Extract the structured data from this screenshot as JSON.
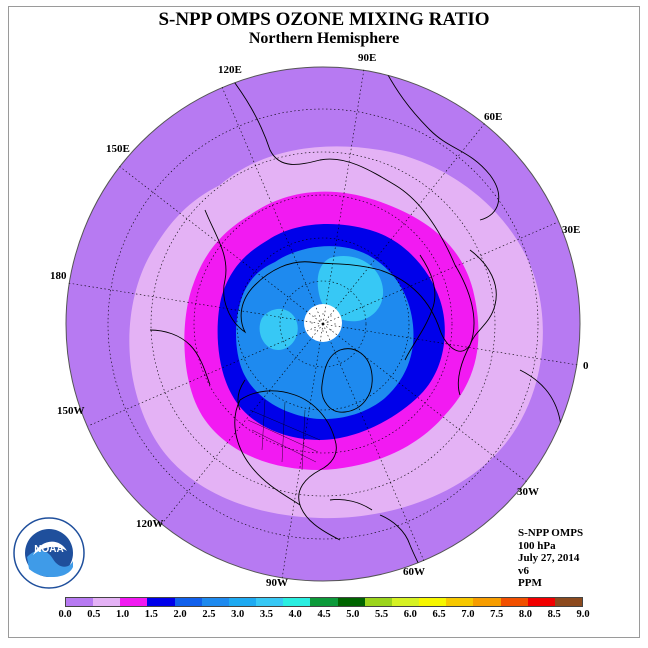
{
  "title": "S-NPP OMPS OZONE MIXING RATIO",
  "subtitle": "Northern Hemisphere",
  "longitude_labels": [
    "0",
    "30E",
    "60E",
    "90E",
    "120E",
    "150E",
    "180",
    "150W",
    "120W",
    "90W",
    "60W",
    "30W"
  ],
  "info": {
    "instrument": "S-NPP OMPS",
    "level": "100 hPa",
    "date": "July 27, 2014",
    "version": "v6",
    "units": "PPM"
  },
  "logo": {
    "name": "NOAA",
    "ring_text": "NATIONAL OCEANIC AND ATMOSPHERIC ADMINISTRATION · U.S. DEPARTMENT OF COMMERCE"
  },
  "colorbar": {
    "colors": [
      "#b77af2",
      "#e4b2f5",
      "#f21af2",
      "#0000ea",
      "#1160ec",
      "#1e8aef",
      "#1eaaf2",
      "#37c8f5",
      "#2aeee0",
      "#0c9a3a",
      "#006400",
      "#9bd41c",
      "#d6f224",
      "#f7f700",
      "#f7c800",
      "#f79d00",
      "#f25000",
      "#f20000",
      "#8c4a1e"
    ],
    "ticks": [
      "0.0",
      "0.5",
      "1.0",
      "1.5",
      "2.0",
      "2.5",
      "3.0",
      "3.5",
      "4.0",
      "4.5",
      "5.0",
      "5.5",
      "6.0",
      "6.5",
      "7.0",
      "7.5",
      "8.0",
      "8.5",
      "9.0"
    ]
  },
  "map_colors": {
    "outer": "#b77af2",
    "light": "#e4b2f5",
    "magenta": "#f21af2",
    "blue": "#0000ea",
    "mid_blue": "#1e8aef",
    "sky": "#37c8f5",
    "pole": "#ffffff"
  }
}
